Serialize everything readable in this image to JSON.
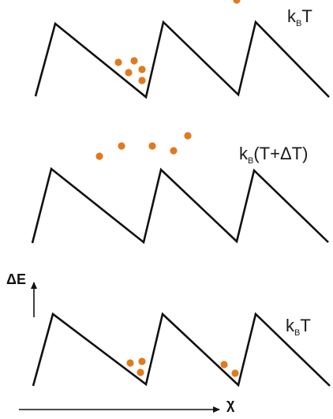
{
  "colors": {
    "particle": "#e07a1f",
    "line": "#111111",
    "background": "#ffffff"
  },
  "panels": [
    {
      "name": "top",
      "label_prefix": "k",
      "label_sub": "B",
      "label_suffix": "T",
      "particle_count": 6
    },
    {
      "name": "middle",
      "label_prefix": "k",
      "label_sub": "B",
      "label_suffix": "(T+ΔT)",
      "particle_count": 5
    },
    {
      "name": "bottom",
      "label_prefix": "k",
      "label_sub": "B",
      "label_suffix": "T",
      "particle_count": 5
    }
  ],
  "axes": {
    "y_label": "ΔE",
    "x_label": "χ"
  }
}
